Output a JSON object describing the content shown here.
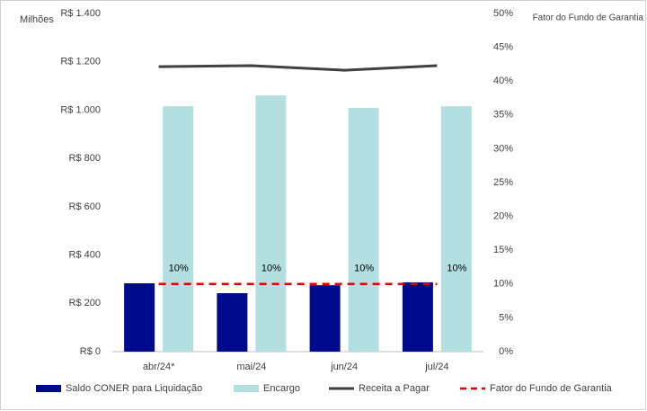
{
  "chart_data": {
    "type": "bar",
    "y_axis_label": "Milhões",
    "y2_axis_label": "Fator do Fundo de Garantia",
    "categories": [
      "abr/24*",
      "mai/24",
      "jun/24",
      "jul/24"
    ],
    "series": [
      {
        "name": "Saldo CONER para Liquidação",
        "type": "bar",
        "color": "#000b8c",
        "values": [
          283,
          242,
          275,
          287
        ]
      },
      {
        "name": "Encargo",
        "type": "bar",
        "color": "#b4dfe0",
        "values": [
          1016,
          1061,
          1009,
          1016
        ]
      },
      {
        "name": "Receita a Pagar",
        "type": "line",
        "color": "#404040",
        "values": [
          1180,
          1184,
          1165,
          1184
        ]
      },
      {
        "name": "Fator do Fundo de Garantia",
        "type": "line",
        "style": "dashed",
        "axis": "y2",
        "color": "#e00000",
        "values": [
          10,
          10,
          10,
          10
        ],
        "value_labels": [
          "10%",
          "10%",
          "10%",
          "10%"
        ]
      }
    ],
    "ylim": [
      0,
      1400
    ],
    "yticks": [
      {
        "value": 0,
        "label": "R$ 0"
      },
      {
        "value": 200,
        "label": "R$ 200"
      },
      {
        "value": 400,
        "label": "R$ 400"
      },
      {
        "value": 600,
        "label": "R$ 600"
      },
      {
        "value": 800,
        "label": "R$ 800"
      },
      {
        "value": 1000,
        "label": "R$ 1.000"
      },
      {
        "value": 1200,
        "label": "R$ 1.200"
      },
      {
        "value": 1400,
        "label": "R$ 1.400"
      }
    ],
    "y2lim": [
      0,
      50
    ],
    "y2ticks": [
      {
        "value": 0,
        "label": "0%"
      },
      {
        "value": 5,
        "label": "5%"
      },
      {
        "value": 10,
        "label": "10%"
      },
      {
        "value": 15,
        "label": "15%"
      },
      {
        "value": 20,
        "label": "20%"
      },
      {
        "value": 25,
        "label": "25%"
      },
      {
        "value": 30,
        "label": "30%"
      },
      {
        "value": 35,
        "label": "35%"
      },
      {
        "value": 40,
        "label": "40%"
      },
      {
        "value": 45,
        "label": "45%"
      },
      {
        "value": 50,
        "label": "50%"
      }
    ],
    "grid": false,
    "legend": "bottom"
  }
}
